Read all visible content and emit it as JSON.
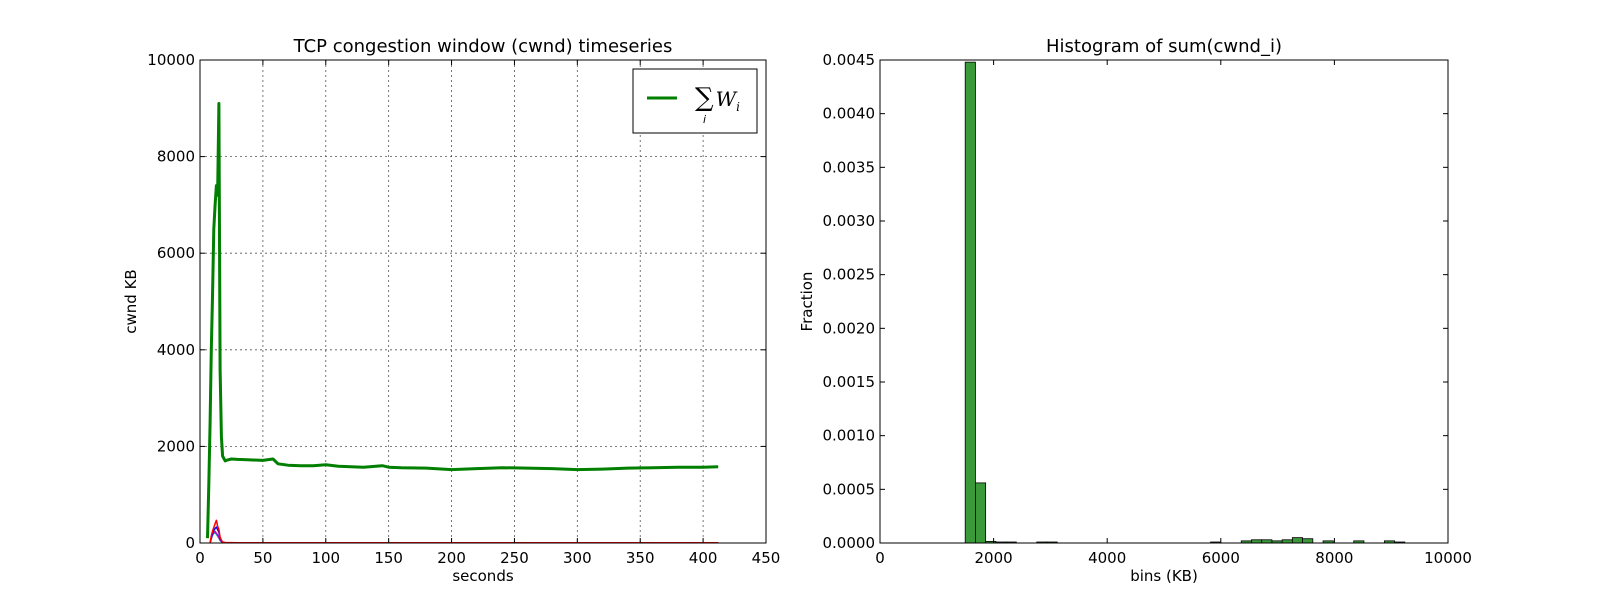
{
  "chart_data": [
    {
      "type": "line",
      "title": "TCP congestion window (cwnd) timeseries",
      "xlabel": "seconds",
      "ylabel": "cwnd KB",
      "xlim": [
        0,
        450
      ],
      "ylim": [
        0,
        10000
      ],
      "xticks": [
        "0",
        "50",
        "100",
        "150",
        "200",
        "250",
        "300",
        "350",
        "400",
        "450"
      ],
      "yticks": [
        "0",
        "2000",
        "4000",
        "6000",
        "8000",
        "10000"
      ],
      "grid": true,
      "legend": {
        "placement": "top-right",
        "entries": [
          "∑ W_i"
        ]
      },
      "series": [
        {
          "name": "∑ W_i",
          "color": "#007f00",
          "x": [
            6,
            7,
            8,
            9,
            10,
            11,
            12,
            13,
            14,
            15,
            16,
            17,
            18,
            20,
            22,
            25,
            30,
            40,
            50,
            58,
            62,
            70,
            80,
            90,
            100,
            110,
            120,
            130,
            145,
            150,
            160,
            180,
            200,
            220,
            240,
            260,
            280,
            300,
            320,
            340,
            360,
            380,
            400,
            412
          ],
          "y": [
            100,
            1200,
            2500,
            4000,
            5200,
            6500,
            7000,
            7400,
            7200,
            9100,
            3600,
            2200,
            1800,
            1700,
            1720,
            1740,
            1730,
            1720,
            1710,
            1740,
            1640,
            1610,
            1600,
            1600,
            1620,
            1590,
            1580,
            1570,
            1600,
            1570,
            1560,
            1550,
            1520,
            1540,
            1560,
            1550,
            1540,
            1520,
            1530,
            1550,
            1560,
            1570,
            1570,
            1580
          ]
        },
        {
          "name": "",
          "color": "#ff0000",
          "x": [
            8,
            9,
            10,
            11,
            12,
            13,
            14,
            15,
            16,
            17,
            18,
            20,
            30,
            100,
            200,
            300,
            412
          ],
          "y": [
            0,
            150,
            250,
            320,
            400,
            470,
            350,
            280,
            120,
            60,
            20,
            10,
            5,
            5,
            5,
            5,
            5
          ]
        },
        {
          "name": "",
          "color": "#0000ff",
          "x": [
            8,
            9,
            10,
            11,
            12,
            13,
            14,
            15,
            16,
            17,
            18,
            20,
            412
          ],
          "y": [
            0,
            120,
            200,
            260,
            300,
            330,
            280,
            220,
            100,
            40,
            15,
            5,
            5
          ]
        },
        {
          "name": "",
          "color": "#bf00bf",
          "x": [
            8,
            9,
            10,
            11,
            12,
            13,
            14,
            15,
            16,
            18,
            20,
            412
          ],
          "y": [
            0,
            100,
            180,
            220,
            240,
            200,
            170,
            120,
            60,
            10,
            5,
            5
          ]
        },
        {
          "name": "",
          "color": "#00bfbf",
          "x": [
            8,
            9,
            10,
            11,
            12,
            13,
            14,
            15,
            16,
            18,
            20,
            412
          ],
          "y": [
            0,
            80,
            160,
            200,
            210,
            180,
            140,
            100,
            50,
            10,
            5,
            5
          ]
        }
      ]
    },
    {
      "type": "bar",
      "title": "Histogram of sum(cwnd_i)",
      "xlabel": "bins (KB)",
      "ylabel": "Fraction",
      "xlim": [
        0,
        10000
      ],
      "ylim": [
        0,
        0.0045
      ],
      "xticks": [
        "0",
        "2000",
        "4000",
        "6000",
        "8000",
        "10000"
      ],
      "yticks": [
        "0.0000",
        "0.0005",
        "0.0010",
        "0.0015",
        "0.0020",
        "0.0025",
        "0.0030",
        "0.0035",
        "0.0040",
        "0.0045"
      ],
      "grid": false,
      "bar_color": "#3a9a3a",
      "bins": [
        {
          "x0": 1500,
          "x1": 1680,
          "value": 0.00448
        },
        {
          "x0": 1680,
          "x1": 1860,
          "value": 0.00056
        },
        {
          "x0": 1860,
          "x1": 2040,
          "value": 1.5e-05
        },
        {
          "x0": 2040,
          "x1": 2220,
          "value": 8e-06
        },
        {
          "x0": 2220,
          "x1": 2400,
          "value": 8e-06
        },
        {
          "x0": 2760,
          "x1": 2940,
          "value": 8e-06
        },
        {
          "x0": 2940,
          "x1": 3120,
          "value": 8e-06
        },
        {
          "x0": 5820,
          "x1": 6000,
          "value": 8e-06
        },
        {
          "x0": 6360,
          "x1": 6540,
          "value": 2e-05
        },
        {
          "x0": 6540,
          "x1": 6720,
          "value": 3e-05
        },
        {
          "x0": 6720,
          "x1": 6900,
          "value": 3e-05
        },
        {
          "x0": 6900,
          "x1": 7080,
          "value": 2e-05
        },
        {
          "x0": 7080,
          "x1": 7260,
          "value": 3e-05
        },
        {
          "x0": 7260,
          "x1": 7440,
          "value": 5e-05
        },
        {
          "x0": 7440,
          "x1": 7620,
          "value": 4e-05
        },
        {
          "x0": 7800,
          "x1": 7980,
          "value": 2e-05
        },
        {
          "x0": 8340,
          "x1": 8520,
          "value": 2e-05
        },
        {
          "x0": 8880,
          "x1": 9060,
          "value": 2e-05
        },
        {
          "x0": 9060,
          "x1": 9240,
          "value": 8e-06
        }
      ]
    }
  ]
}
